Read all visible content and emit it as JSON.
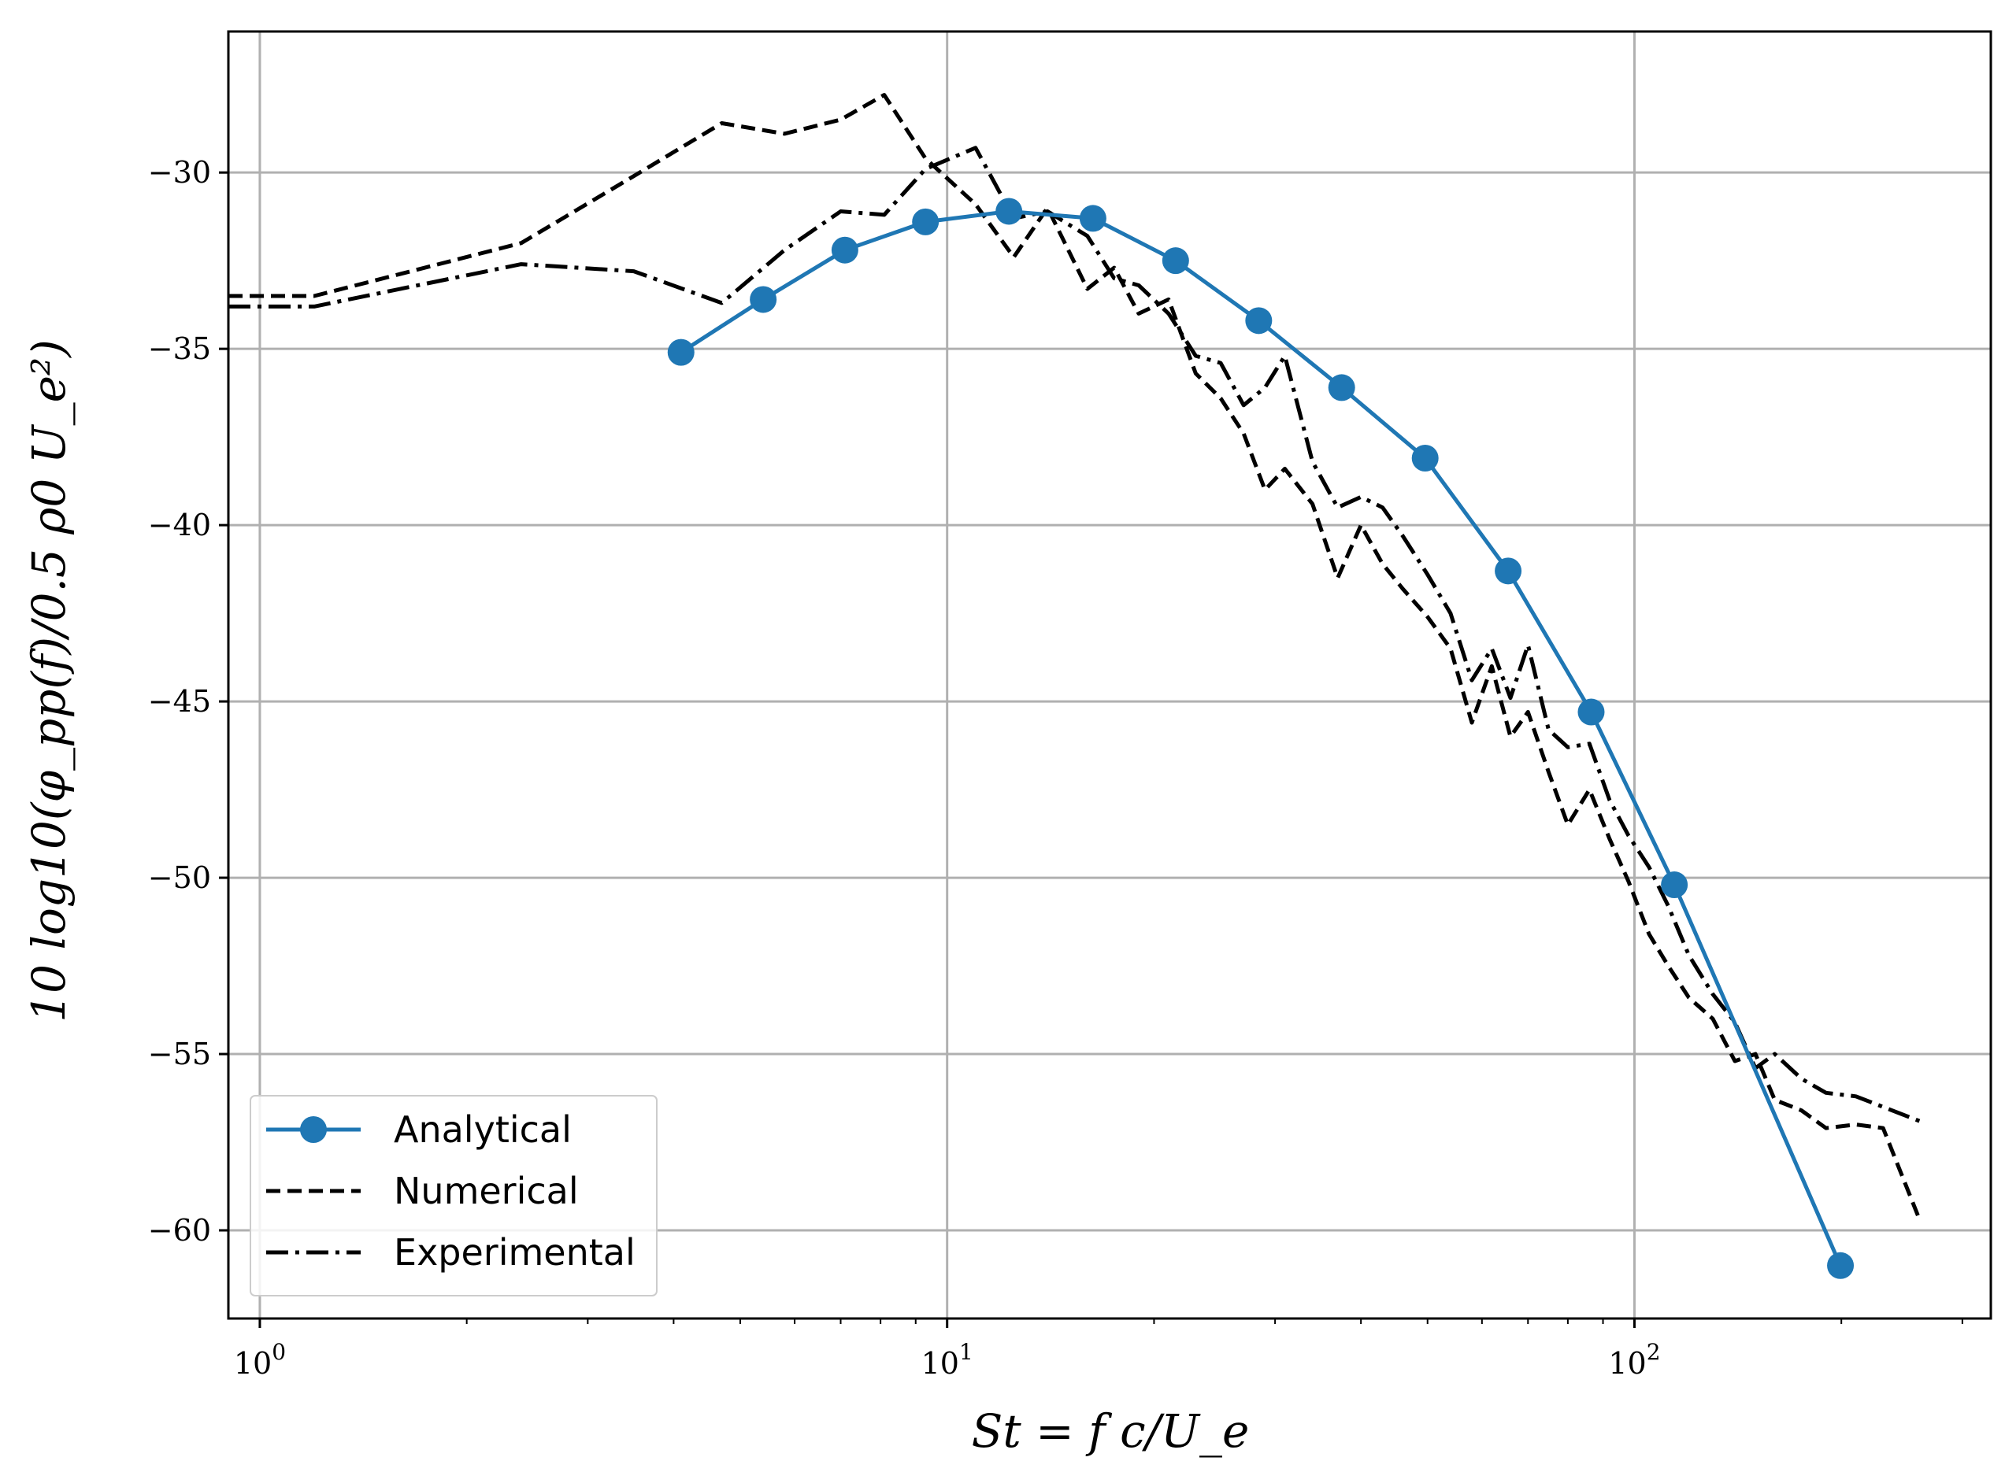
{
  "chart_data": {
    "type": "line",
    "title": "",
    "xlabel": "St = f c/U_e",
    "ylabel": "10 log10(φ_pp(f)/0.5 ρ0 U_e²)",
    "xscale": "log",
    "xlim": [
      0.9,
      330
    ],
    "ylim": [
      -62.5,
      -26
    ],
    "grid": true,
    "legend_position": "lower-left",
    "x_ticks": [
      1,
      10,
      100
    ],
    "x_tick_labels": [
      "10^0",
      "10^1",
      "10^2"
    ],
    "y_ticks": [
      -30,
      -35,
      -40,
      -45,
      -50,
      -55,
      -60
    ],
    "y_tick_labels": [
      "−30",
      "−35",
      "−40",
      "−45",
      "−50",
      "−55",
      "−60"
    ],
    "series": [
      {
        "name": "Analytical",
        "style": "solid-marker",
        "color": "#1f77b4",
        "x": [
          4.1,
          5.4,
          7.1,
          9.3,
          12.3,
          16.3,
          21.5,
          28.4,
          37.5,
          49.6,
          65.5,
          86.5,
          114.3,
          199.4
        ],
        "y": [
          -35.1,
          -33.6,
          -32.2,
          -31.4,
          -31.1,
          -31.3,
          -32.5,
          -34.2,
          -36.1,
          -38.1,
          -41.3,
          -45.3,
          -50.2,
          -61.0
        ]
      },
      {
        "name": "Numerical",
        "style": "dashed",
        "color": "#000000",
        "x": [
          0.9,
          1.2,
          2.4,
          3.5,
          4.7,
          5.8,
          7.0,
          8.1,
          9.3,
          11.0,
          12.5,
          14.0,
          16.0,
          17.5,
          19.0,
          21.0,
          23.0,
          25.0,
          27.0,
          29.0,
          31.0,
          34.0,
          37.0,
          40.0,
          43.0,
          46.0,
          50.0,
          54.0,
          58.0,
          62.0,
          66.0,
          70.0,
          75.0,
          80.0,
          86.0,
          92.0,
          98.0,
          105.0,
          112.0,
          120.0,
          130.0,
          140.0,
          150.0,
          160.0,
          175.0,
          190.0,
          210.0,
          230.0,
          260.0
        ],
        "y": [
          -33.5,
          -33.5,
          -32.0,
          -30.1,
          -28.6,
          -28.9,
          -28.5,
          -27.8,
          -29.6,
          -30.9,
          -32.4,
          -31.0,
          -33.3,
          -32.7,
          -34.0,
          -33.6,
          -35.7,
          -36.4,
          -37.4,
          -39.0,
          -38.4,
          -39.4,
          -41.5,
          -40.0,
          -41.1,
          -41.8,
          -42.6,
          -43.5,
          -45.6,
          -44.0,
          -46.0,
          -45.3,
          -47.0,
          -48.5,
          -47.5,
          -48.9,
          -50.1,
          -51.6,
          -52.5,
          -53.4,
          -54.0,
          -55.2,
          -55.0,
          -56.3,
          -56.6,
          -57.1,
          -57.0,
          -57.1,
          -59.7
        ]
      },
      {
        "name": "Experimental",
        "style": "dashdot",
        "color": "#000000",
        "x": [
          0.9,
          1.2,
          2.4,
          3.5,
          4.7,
          5.8,
          7.0,
          8.1,
          9.3,
          11.0,
          12.5,
          14.0,
          16.0,
          17.5,
          19.0,
          21.0,
          23.0,
          25.0,
          27.0,
          29.0,
          31.0,
          34.0,
          37.0,
          40.0,
          43.0,
          46.0,
          50.0,
          54.0,
          58.0,
          62.0,
          66.0,
          70.0,
          75.0,
          80.0,
          86.0,
          92.0,
          98.0,
          105.0,
          112.0,
          120.0,
          130.0,
          140.0,
          150.0,
          160.0,
          175.0,
          190.0,
          210.0,
          230.0,
          260.0
        ],
        "y": [
          -33.8,
          -33.8,
          -32.6,
          -32.8,
          -33.7,
          -32.2,
          -31.1,
          -31.2,
          -29.9,
          -29.3,
          -31.3,
          -31.1,
          -31.8,
          -33.0,
          -33.2,
          -34.0,
          -35.2,
          -35.4,
          -36.6,
          -36.1,
          -35.2,
          -38.2,
          -39.5,
          -39.2,
          -39.5,
          -40.3,
          -41.4,
          -42.5,
          -44.4,
          -43.5,
          -44.9,
          -43.4,
          -45.8,
          -46.3,
          -46.2,
          -47.8,
          -48.8,
          -49.7,
          -50.8,
          -52.2,
          -53.3,
          -54.1,
          -55.4,
          -55.0,
          -55.7,
          -56.1,
          -56.2,
          -56.5,
          -56.9
        ]
      }
    ]
  }
}
